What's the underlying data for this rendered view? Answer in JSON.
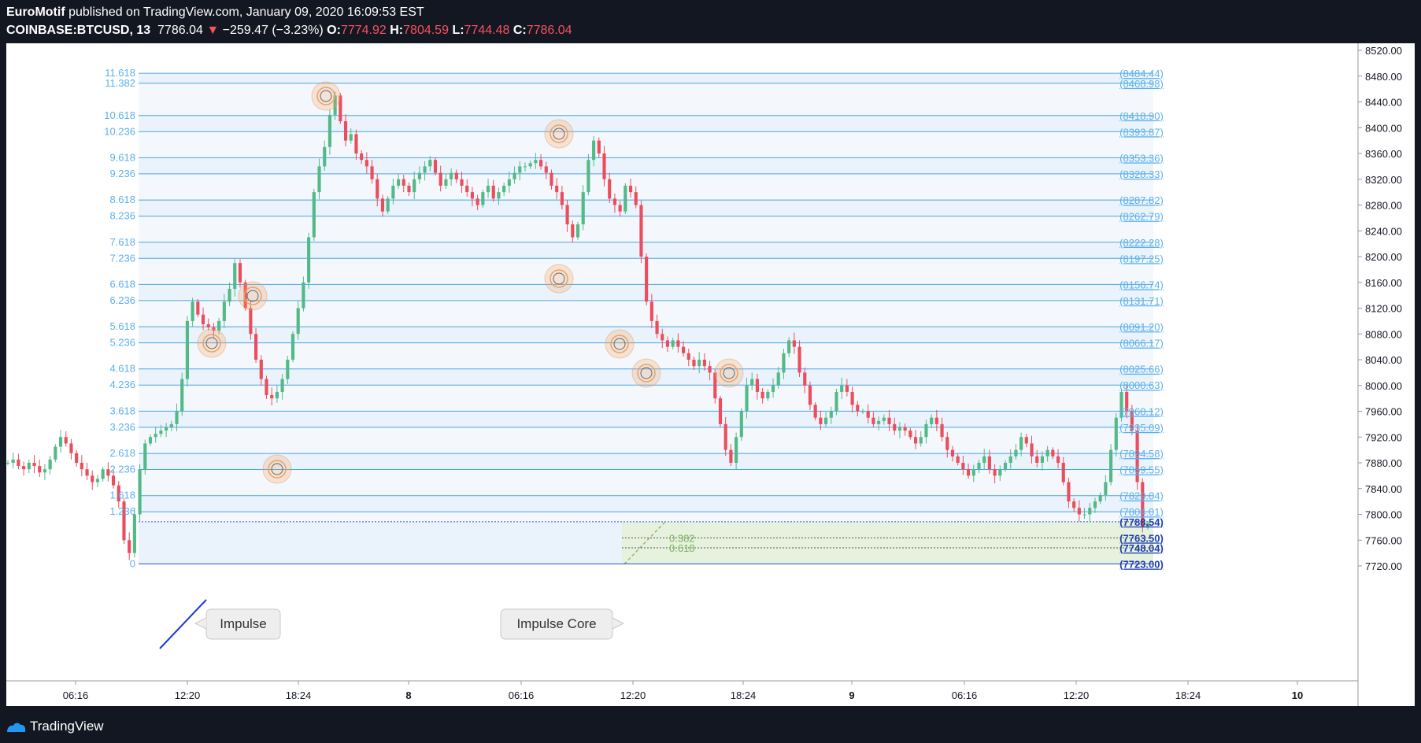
{
  "header": {
    "author": "EuroMotif",
    "published": "published on TradingView.com, January 09, 2020 16:09:53 EST",
    "symbol": "COINBASE:BTCUSD, 13",
    "last": "7786.04",
    "change": "−259.47 (−3.23%)",
    "open_label": "O:",
    "open": "7774.92",
    "high_label": "H:",
    "high": "7804.59",
    "low_label": "L:",
    "low": "7744.48",
    "close_label": "C:",
    "close": "7786.04"
  },
  "footer": {
    "brand": "TradingView"
  },
  "colors": {
    "fib": "#4aa3e8",
    "fib_text": "#5ab0ee",
    "up": "#53b987",
    "down": "#eb4d5c",
    "core": "#7ab25d",
    "circle": "#f0a060"
  },
  "chart_data": {
    "type": "candlestick",
    "ylim": [
      7700,
      8530
    ],
    "y_ticks": [
      "8520.00",
      "8480.00",
      "8440.00",
      "8400.00",
      "8360.00",
      "8320.00",
      "8280.00",
      "8240.00",
      "8200.00",
      "8160.00",
      "8120.00",
      "8080.00",
      "8040.00",
      "8000.00",
      "7960.00",
      "7920.00",
      "7880.00",
      "7840.00",
      "7800.00",
      "7760.00",
      "7720.00"
    ],
    "x_ticks": [
      "06:16",
      "12:20",
      "18:24",
      "8",
      "06:16",
      "12:20",
      "18:24",
      "9",
      "06:16",
      "12:20",
      "18:24",
      "10"
    ],
    "fib_levels": [
      {
        "ratio": "11.618",
        "price": "(8484.44)"
      },
      {
        "ratio": "11.382",
        "price": "(8468.98)"
      },
      {
        "ratio": "10.618",
        "price": "(8418.90)"
      },
      {
        "ratio": "10.236",
        "price": "(8393.87)"
      },
      {
        "ratio": "9.618",
        "price": "(8353.36)"
      },
      {
        "ratio": "9.236",
        "price": "(8328.33)"
      },
      {
        "ratio": "8.618",
        "price": "(8287.82)"
      },
      {
        "ratio": "8.236",
        "price": "(8262.79)"
      },
      {
        "ratio": "7.618",
        "price": "(8222.28)"
      },
      {
        "ratio": "7.236",
        "price": "(8197.25)"
      },
      {
        "ratio": "6.618",
        "price": "(8156.74)"
      },
      {
        "ratio": "6.236",
        "price": "(8131.71)"
      },
      {
        "ratio": "5.618",
        "price": "(8091.20)"
      },
      {
        "ratio": "5.236",
        "price": "(8066.17)"
      },
      {
        "ratio": "4.618",
        "price": "(8025.66)"
      },
      {
        "ratio": "4.236",
        "price": "(8000.63)"
      },
      {
        "ratio": "3.618",
        "price": "(7960.12)"
      },
      {
        "ratio": "3.236",
        "price": "(7935.09)"
      },
      {
        "ratio": "2.618",
        "price": "(7894.58)"
      },
      {
        "ratio": "2.236",
        "price": "(7869.55)"
      },
      {
        "ratio": "1.618",
        "price": "(7829.04)"
      },
      {
        "ratio": "1.236",
        "price": "(7804.01)"
      },
      {
        "ratio": "",
        "price": "(7788.54)"
      },
      {
        "ratio": "0",
        "price": "(7723.00)"
      }
    ],
    "core_levels": [
      {
        "ratio": "0.382",
        "price": "(7763.50)"
      },
      {
        "ratio": "0.618",
        "price": "(7748.04)"
      }
    ],
    "annotations": [
      "Impulse",
      "Impulse Core"
    ],
    "close_path": [
      7880,
      7885,
      7875,
      7870,
      7880,
      7875,
      7865,
      7870,
      7885,
      7905,
      7920,
      7910,
      7895,
      7880,
      7870,
      7860,
      7850,
      7855,
      7870,
      7860,
      7845,
      7820,
      7760,
      7740,
      7800,
      7870,
      7910,
      7920,
      7925,
      7930,
      7935,
      7940,
      7960,
      8010,
      8100,
      8130,
      8110,
      8095,
      8090,
      8085,
      8100,
      8130,
      8150,
      8190,
      8160,
      8120,
      8080,
      8040,
      8010,
      7985,
      7980,
      7990,
      8010,
      8040,
      8080,
      8120,
      8160,
      8230,
      8300,
      8340,
      8370,
      8420,
      8450,
      8410,
      8380,
      8390,
      8360,
      8350,
      8340,
      8320,
      8290,
      8270,
      8290,
      8310,
      8320,
      8310,
      8300,
      8320,
      8330,
      8340,
      8350,
      8330,
      8310,
      8320,
      8330,
      8320,
      8310,
      8300,
      8290,
      8280,
      8300,
      8310,
      8290,
      8300,
      8310,
      8320,
      8330,
      8340,
      8340,
      8345,
      8350,
      8340,
      8330,
      8310,
      8300,
      8280,
      8250,
      8230,
      8250,
      8300,
      8350,
      8380,
      8360,
      8320,
      8290,
      8280,
      8270,
      8310,
      8300,
      8280,
      8200,
      8130,
      8100,
      8080,
      8070,
      8060,
      8070,
      8060,
      8050,
      8040,
      8030,
      8040,
      8030,
      8020,
      7980,
      7940,
      7900,
      7880,
      7920,
      7960,
      8000,
      8010,
      7990,
      7980,
      7990,
      8000,
      8020,
      8050,
      8070,
      8060,
      8020,
      8000,
      7970,
      7950,
      7940,
      7950,
      7960,
      7990,
      8000,
      7990,
      7970,
      7960,
      7960,
      7950,
      7940,
      7945,
      7950,
      7940,
      7930,
      7935,
      7930,
      7920,
      7910,
      7920,
      7940,
      7950,
      7940,
      7920,
      7900,
      7890,
      7880,
      7870,
      7860,
      7870,
      7880,
      7890,
      7870,
      7860,
      7870,
      7880,
      7890,
      7900,
      7920,
      7910,
      7890,
      7880,
      7890,
      7900,
      7890,
      7880,
      7850,
      7820,
      7810,
      7800,
      7800,
      7810,
      7820,
      7830,
      7850,
      7900,
      7950,
      7990,
      7960,
      7930,
      7850,
      7780,
      7786
    ]
  }
}
